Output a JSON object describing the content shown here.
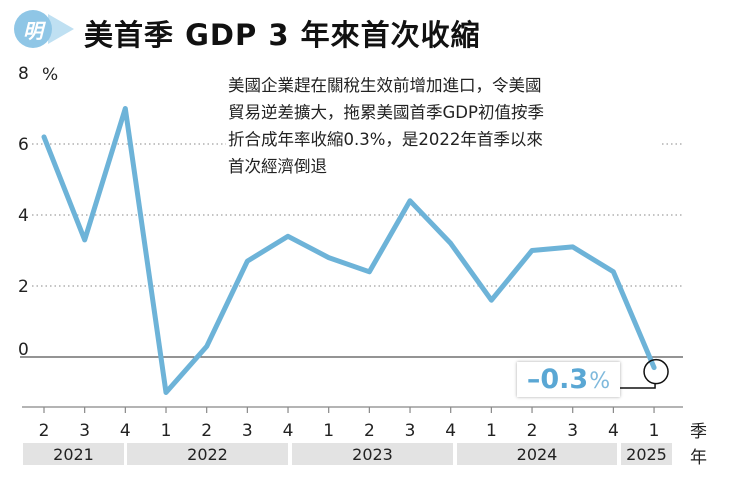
{
  "header": {
    "logo_text": "明",
    "title": "美首季 GDP 3 年來首次收縮"
  },
  "annotation": {
    "lines": [
      "美國企業趕在關稅生效前增加進口，令美國",
      "貿易逆差擴大，拖累美國首季GDP初值按季",
      "折合成年率收縮0.3%，是2022年首季以來",
      "首次經濟倒退"
    ]
  },
  "chart_data": {
    "type": "line",
    "y_unit": "%",
    "yticks": [
      0,
      2,
      4,
      6,
      8
    ],
    "ytick_labels": [
      "0",
      "2",
      "4",
      "6",
      "8"
    ],
    "ylim": [
      -1.4,
      8.5
    ],
    "grid": "horizontal dotted at 2, 4, 6; solid at 0",
    "categories": [
      "2",
      "3",
      "4",
      "1",
      "2",
      "3",
      "4",
      "1",
      "2",
      "3",
      "4",
      "1",
      "2",
      "3",
      "4",
      "1"
    ],
    "year_groups": [
      {
        "label": "2021",
        "start": 0,
        "end": 2
      },
      {
        "label": "2022",
        "start": 3,
        "end": 6
      },
      {
        "label": "2023",
        "start": 7,
        "end": 10
      },
      {
        "label": "2024",
        "start": 11,
        "end": 14
      },
      {
        "label": "2025",
        "start": 15,
        "end": 15
      }
    ],
    "x_suffix_labels": [
      "季",
      "年"
    ],
    "series": [
      {
        "values": [
          6.2,
          3.3,
          7.0,
          -1.0,
          0.3,
          2.7,
          3.4,
          2.8,
          2.4,
          4.4,
          3.2,
          1.6,
          3.0,
          3.1,
          2.4,
          -0.3
        ]
      }
    ],
    "callout": {
      "index": 15,
      "value": "–0.3",
      "unit": "%"
    }
  },
  "colors": {
    "series_line": "#6db3d8",
    "logo": "#8fc6e6",
    "year_box": "#e3e3e3",
    "callout_text": "#5aa7d4"
  }
}
